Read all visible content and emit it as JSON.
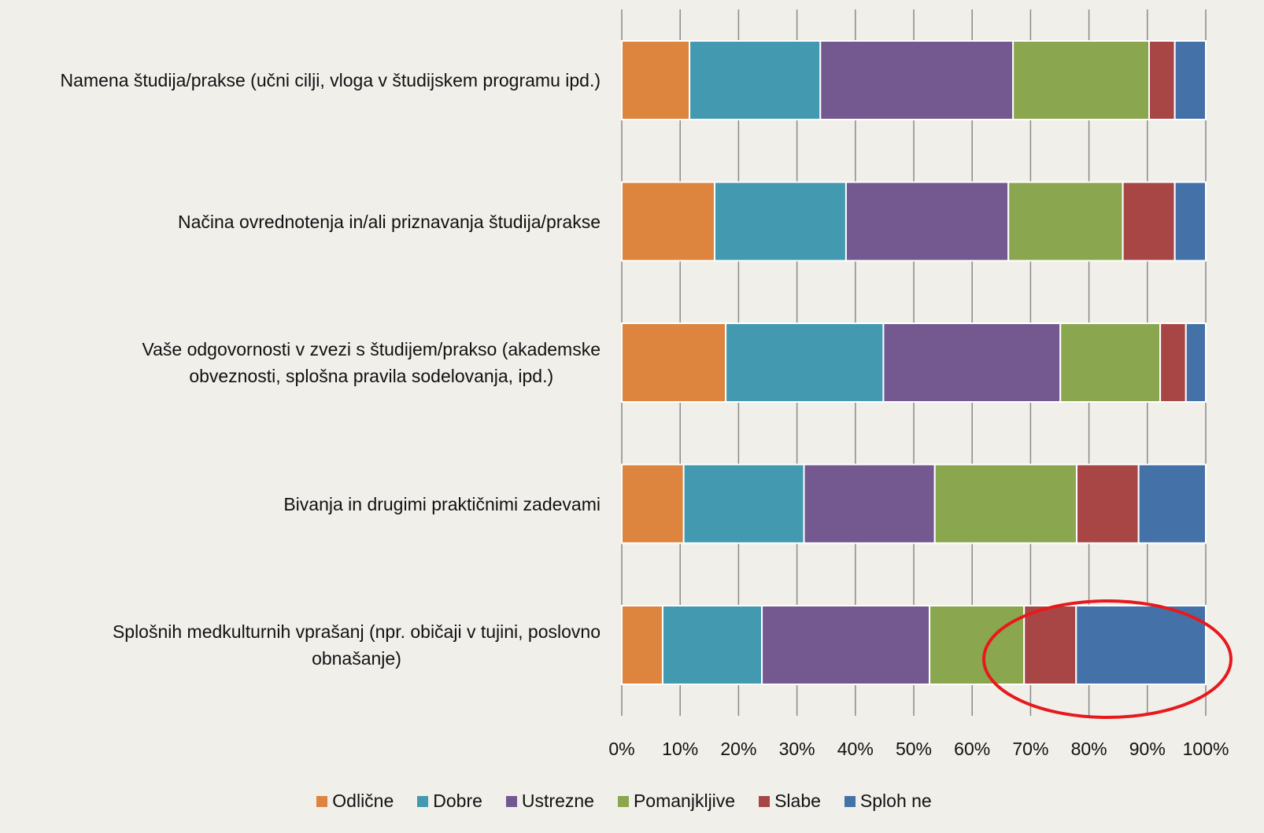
{
  "chart_data": {
    "type": "stacked_barh",
    "categories": [
      "Namena študija/prakse (učni cilji, vloga v študijskem programu ipd.)",
      "Načina ovrednotenja in/ali priznavanja študija/prakse",
      "Vaše odgovornosti v zvezi s študijem/prakso (akademske\nobveznosti, splošna pravila sodelovanja, ipd.)",
      "Bivanja in drugimi praktičnimi zadevami",
      "Splošnih medkulturnih vprašanj (npr. običaji v tujini, poslovno\nobnašanje)"
    ],
    "series": [
      {
        "name": "Odlične",
        "color": "#dd843f",
        "values": [
          11.6,
          15.9,
          17.8,
          10.6,
          7.0
        ]
      },
      {
        "name": "Dobre",
        "color": "#4299b0",
        "values": [
          22.4,
          22.5,
          27.0,
          20.6,
          17.0
        ]
      },
      {
        "name": "Ustrezne",
        "color": "#73598f",
        "values": [
          33.0,
          27.8,
          30.3,
          22.4,
          28.7
        ]
      },
      {
        "name": "Pomanjkljive",
        "color": "#8aa74f",
        "values": [
          23.3,
          19.6,
          17.1,
          24.3,
          16.2
        ]
      },
      {
        "name": "Slabe",
        "color": "#a84646",
        "values": [
          4.4,
          8.9,
          4.4,
          10.6,
          8.9
        ]
      },
      {
        "name": "Sploh ne",
        "color": "#4472a8",
        "values": [
          5.3,
          5.3,
          3.4,
          11.5,
          22.2
        ]
      }
    ],
    "xlim": [
      0,
      100
    ],
    "xticks": [
      {
        "value": 0,
        "label": "0%"
      },
      {
        "value": 10,
        "label": "10%"
      },
      {
        "value": 20,
        "label": "20%"
      },
      {
        "value": 30,
        "label": "30%"
      },
      {
        "value": 40,
        "label": "40%"
      },
      {
        "value": 50,
        "label": "50%"
      },
      {
        "value": 60,
        "label": "60%"
      },
      {
        "value": 70,
        "label": "70%"
      },
      {
        "value": 80,
        "label": "80%"
      },
      {
        "value": 90,
        "label": "90%"
      },
      {
        "value": 100,
        "label": "100%"
      }
    ],
    "grid": true,
    "legend": "bottom"
  }
}
